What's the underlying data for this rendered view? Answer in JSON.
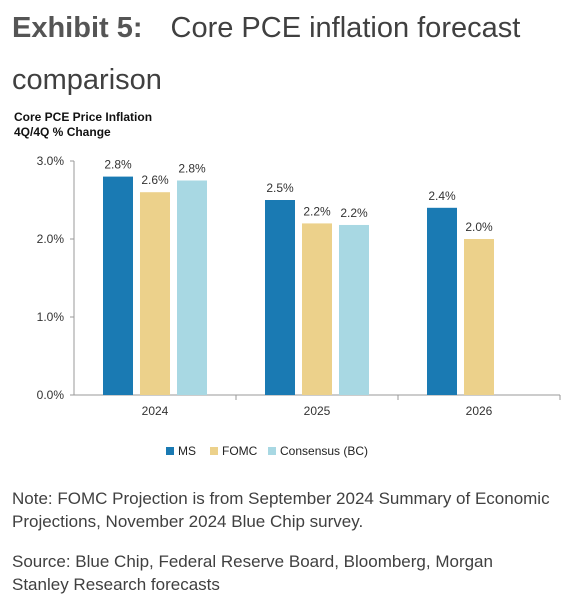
{
  "exhibit": {
    "label": "Exhibit 5:",
    "title": "Core PCE inflation forecast comparison"
  },
  "chart_data": {
    "type": "bar",
    "title": "Core PCE Price Inflation",
    "subtitle": "4Q/4Q % Change",
    "categories": [
      "2024",
      "2025",
      "2026"
    ],
    "series": [
      {
        "name": "MS",
        "color": "#1a7ab3",
        "values": [
          2.8,
          2.5,
          2.4
        ],
        "labels": [
          "2.8%",
          "2.5%",
          "2.4%"
        ]
      },
      {
        "name": "FOMC",
        "color": "#ecd18b",
        "values": [
          2.6,
          2.2,
          2.0
        ],
        "labels": [
          "2.6%",
          "2.2%",
          "2.0%"
        ]
      },
      {
        "name": "Consensus (BC)",
        "color": "#a8d8e3",
        "values": [
          2.75,
          2.18,
          null
        ],
        "labels": [
          "2.8%",
          "2.2%",
          null
        ]
      }
    ],
    "ylim": [
      0,
      3
    ],
    "yticks": [
      0,
      1,
      2,
      3
    ],
    "ytick_labels": [
      "0.0%",
      "1.0%",
      "2.0%",
      "3.0%"
    ],
    "grid": false,
    "legend": "bottom"
  },
  "notes": {
    "note": "Note: FOMC Projection is from September 2024 Summary of Economic Projections, November 2024 Blue Chip survey.",
    "source": "Source: Blue Chip, Federal Reserve Board, Bloomberg, Morgan Stanley Research forecasts"
  }
}
